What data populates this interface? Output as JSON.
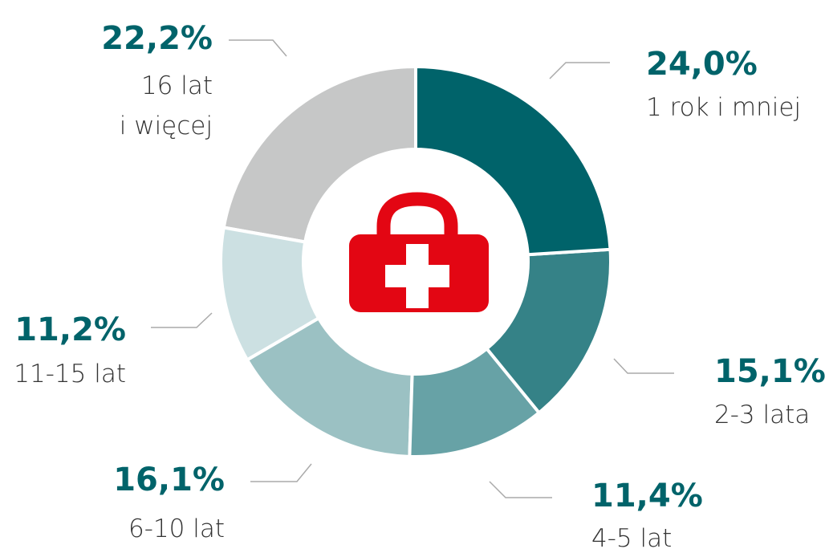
{
  "chart_data": {
    "type": "donut",
    "categories": [
      "1 rok i mniej",
      "2-3 lata",
      "4-5 lat",
      "6-10 lat",
      "11-15 lat",
      "16 lat\ni więcej"
    ],
    "values": [
      24.0,
      15.1,
      11.4,
      16.1,
      11.2,
      22.2
    ],
    "value_labels": [
      "24,0%",
      "15,1%",
      "11,4%",
      "16,1%",
      "11,2%",
      "22,2%"
    ],
    "colors": [
      "#00636a",
      "#358287",
      "#67a2a6",
      "#9bc1c3",
      "#cce0e2",
      "#c6c7c7"
    ]
  }
}
